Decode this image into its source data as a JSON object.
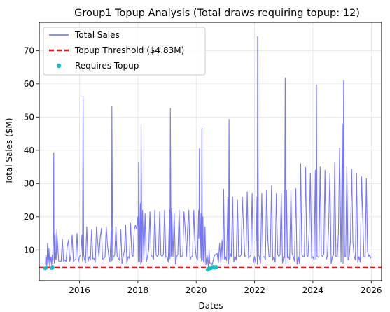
{
  "chart_data": {
    "type": "line",
    "title": "Group1 Topup Analysis (Total draws requiring topup: 12)",
    "xlabel": "Dates",
    "ylabel": "Total Sales ($M)",
    "xlim": [
      "2014-08-15",
      "2026-05-10"
    ],
    "ylim": [
      0.8,
      78.5
    ],
    "x_ticks": [
      "2016",
      "2018",
      "2020",
      "2022",
      "2024",
      "2026"
    ],
    "y_ticks": [
      10,
      20,
      30,
      40,
      50,
      60,
      70
    ],
    "grid": true,
    "legend_position": "top-left",
    "threshold": 4.83,
    "threshold_label": "Topup Threshold ($4.83M)",
    "series": [
      {
        "name": "Total Sales",
        "color": "#6a6af5",
        "style": "line",
        "note": "noisy daily series; baseline ~5-9, spikes per points below",
        "points": [
          [
            "2014-11-01",
            5.5
          ],
          [
            "2014-11-10",
            8.0
          ],
          [
            "2014-11-18",
            5.2
          ],
          [
            "2014-11-26",
            12.0
          ],
          [
            "2014-12-05",
            6.0
          ],
          [
            "2014-12-15",
            10.5
          ],
          [
            "2014-12-25",
            5.0
          ],
          [
            "2015-01-05",
            7.5
          ],
          [
            "2015-01-15",
            5.5
          ],
          [
            "2015-01-25",
            8.5
          ],
          [
            "2015-02-05",
            14.0
          ],
          [
            "2015-02-12",
            39.3
          ],
          [
            "2015-02-20",
            6.0
          ],
          [
            "2015-03-01",
            15.0
          ],
          [
            "2015-03-15",
            7.0
          ],
          [
            "2015-04-01",
            12.0
          ],
          [
            "2015-05-01",
            6.5
          ],
          [
            "2015-06-01",
            13.2
          ],
          [
            "2015-07-01",
            7.0
          ],
          [
            "2015-08-01",
            11.0
          ],
          [
            "2015-09-01",
            6.5
          ],
          [
            "2015-10-01",
            14.5
          ],
          [
            "2015-11-01",
            7.0
          ],
          [
            "2015-12-01",
            15.0
          ],
          [
            "2016-01-01",
            8.0
          ],
          [
            "2016-02-01",
            14.5
          ],
          [
            "2016-02-15",
            56.3
          ],
          [
            "2016-03-01",
            7.5
          ],
          [
            "2016-04-01",
            17.0
          ],
          [
            "2016-05-01",
            8.0
          ],
          [
            "2016-06-01",
            16.0
          ],
          [
            "2016-07-01",
            7.5
          ],
          [
            "2016-08-01",
            17.0
          ],
          [
            "2016-09-01",
            8.0
          ],
          [
            "2016-10-01",
            16.5
          ],
          [
            "2016-11-01",
            7.5
          ],
          [
            "2016-12-01",
            17.0
          ],
          [
            "2017-01-01",
            8.0
          ],
          [
            "2017-02-01",
            16.0
          ],
          [
            "2017-02-10",
            53.1
          ],
          [
            "2017-03-01",
            8.0
          ],
          [
            "2017-04-01",
            17.0
          ],
          [
            "2017-05-01",
            7.5
          ],
          [
            "2017-06-01",
            16.0
          ],
          [
            "2017-07-01",
            8.0
          ],
          [
            "2017-08-01",
            17.5
          ],
          [
            "2017-09-01",
            8.0
          ],
          [
            "2017-10-01",
            18.0
          ],
          [
            "2017-11-01",
            8.0
          ],
          [
            "2017-12-01",
            17.5
          ],
          [
            "2018-01-01",
            20.0
          ],
          [
            "2018-01-10",
            36.3
          ],
          [
            "2018-02-01",
            24.0
          ],
          [
            "2018-02-10",
            48.0
          ],
          [
            "2018-03-01",
            22.0
          ],
          [
            "2018-04-01",
            21.0
          ],
          [
            "2018-05-01",
            8.0
          ],
          [
            "2018-06-01",
            21.5
          ],
          [
            "2018-07-01",
            8.0
          ],
          [
            "2018-08-01",
            22.0
          ],
          [
            "2018-09-01",
            8.0
          ],
          [
            "2018-10-01",
            21.5
          ],
          [
            "2018-11-01",
            8.0
          ],
          [
            "2018-12-01",
            22.0
          ],
          [
            "2019-01-01",
            8.0
          ],
          [
            "2019-02-01",
            22.0
          ],
          [
            "2019-02-12",
            52.6
          ],
          [
            "2019-03-01",
            22.5
          ],
          [
            "2019-04-01",
            21.0
          ],
          [
            "2019-05-01",
            8.0
          ],
          [
            "2019-06-01",
            22.0
          ],
          [
            "2019-07-01",
            8.0
          ],
          [
            "2019-08-01",
            21.5
          ],
          [
            "2019-09-01",
            8.0
          ],
          [
            "2019-10-01",
            22.0
          ],
          [
            "2019-11-01",
            8.0
          ],
          [
            "2019-12-01",
            22.0
          ],
          [
            "2020-01-01",
            8.0
          ],
          [
            "2020-02-01",
            22.0
          ],
          [
            "2020-02-10",
            40.5
          ],
          [
            "2020-03-01",
            21.0
          ],
          [
            "2020-03-12",
            46.6
          ],
          [
            "2020-03-25",
            20.0
          ],
          [
            "2020-04-10",
            6.0
          ],
          [
            "2020-05-01",
            5.5
          ],
          [
            "2020-06-01",
            5.0
          ],
          [
            "2020-06-20",
            6.0
          ],
          [
            "2020-07-20",
            5.5
          ],
          [
            "2020-08-20",
            8.5
          ],
          [
            "2020-09-20",
            9.0
          ],
          [
            "2020-10-20",
            12.0
          ],
          [
            "2020-11-20",
            13.0
          ],
          [
            "2020-12-10",
            28.3
          ],
          [
            "2021-01-01",
            8.0
          ],
          [
            "2021-02-01",
            26.0
          ],
          [
            "2021-02-15",
            49.3
          ],
          [
            "2021-03-01",
            9.0
          ],
          [
            "2021-04-01",
            26.0
          ],
          [
            "2021-05-01",
            8.0
          ],
          [
            "2021-06-01",
            25.0
          ],
          [
            "2021-07-01",
            8.0
          ],
          [
            "2021-08-01",
            26.0
          ],
          [
            "2021-09-01",
            8.0
          ],
          [
            "2021-10-01",
            27.5
          ],
          [
            "2021-11-01",
            8.0
          ],
          [
            "2021-12-01",
            27.0
          ],
          [
            "2022-01-01",
            8.0
          ],
          [
            "2022-02-01",
            26.0
          ],
          [
            "2022-02-08",
            74.2
          ],
          [
            "2022-03-01",
            8.0
          ],
          [
            "2022-04-01",
            27.0
          ],
          [
            "2022-05-01",
            8.0
          ],
          [
            "2022-06-01",
            28.0
          ],
          [
            "2022-07-01",
            8.0
          ],
          [
            "2022-08-01",
            29.3
          ],
          [
            "2022-09-01",
            8.0
          ],
          [
            "2022-10-01",
            27.0
          ],
          [
            "2022-11-01",
            8.0
          ],
          [
            "2022-12-01",
            27.0
          ],
          [
            "2023-01-01",
            8.0
          ],
          [
            "2023-01-20",
            61.8
          ],
          [
            "2023-02-05",
            28.0
          ],
          [
            "2023-03-01",
            8.0
          ],
          [
            "2023-04-01",
            28.0
          ],
          [
            "2023-05-01",
            8.0
          ],
          [
            "2023-06-01",
            28.5
          ],
          [
            "2023-07-01",
            8.0
          ],
          [
            "2023-08-01",
            36.0
          ],
          [
            "2023-09-01",
            8.0
          ],
          [
            "2023-10-01",
            34.8
          ],
          [
            "2023-11-01",
            8.0
          ],
          [
            "2023-12-01",
            33.0
          ],
          [
            "2024-01-01",
            8.0
          ],
          [
            "2024-02-01",
            34.0
          ],
          [
            "2024-02-15",
            59.7
          ],
          [
            "2024-03-01",
            8.0
          ],
          [
            "2024-04-01",
            35.0
          ],
          [
            "2024-05-01",
            8.0
          ],
          [
            "2024-06-01",
            34.0
          ],
          [
            "2024-07-01",
            8.0
          ],
          [
            "2024-08-01",
            33.0
          ],
          [
            "2024-09-01",
            8.0
          ],
          [
            "2024-10-01",
            36.3
          ],
          [
            "2024-11-01",
            8.0
          ],
          [
            "2024-12-01",
            40.7
          ],
          [
            "2025-01-05",
            47.9
          ],
          [
            "2025-01-20",
            61.0
          ],
          [
            "2025-02-01",
            8.0
          ],
          [
            "2025-03-01",
            35.0
          ],
          [
            "2025-04-01",
            8.0
          ],
          [
            "2025-05-01",
            34.3
          ],
          [
            "2025-06-01",
            8.0
          ],
          [
            "2025-07-01",
            33.0
          ],
          [
            "2025-08-01",
            8.0
          ],
          [
            "2025-09-01",
            32.0
          ],
          [
            "2025-10-01",
            8.0
          ],
          [
            "2025-11-01",
            31.5
          ],
          [
            "2025-12-01",
            8.0
          ],
          [
            "2025-12-25",
            7.5
          ]
        ]
      },
      {
        "name": "Requires Topup",
        "color": "#17bfc0",
        "style": "scatter",
        "points": [
          [
            "2014-10-28",
            4.5
          ],
          [
            "2014-11-02",
            4.6
          ],
          [
            "2015-01-20",
            4.6
          ],
          [
            "2015-01-28",
            4.8
          ],
          [
            "2020-05-25",
            4.1
          ],
          [
            "2020-06-05",
            4.3
          ],
          [
            "2020-06-20",
            4.5
          ],
          [
            "2020-07-05",
            4.6
          ],
          [
            "2020-07-20",
            4.7
          ],
          [
            "2020-08-05",
            4.8
          ],
          [
            "2020-08-20",
            4.7
          ],
          [
            "2020-09-05",
            4.8
          ]
        ]
      }
    ]
  }
}
